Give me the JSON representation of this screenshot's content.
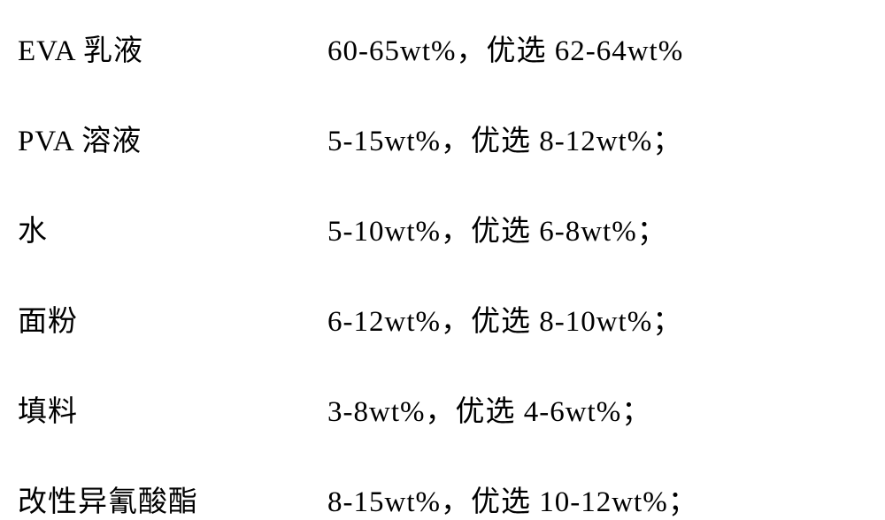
{
  "rows": [
    {
      "label": "EVA 乳液",
      "value": "60-65wt%，优选 62-64wt%"
    },
    {
      "label": "PVA 溶液",
      "value": "5-15wt%，优选 8-12wt%；"
    },
    {
      "label": "水",
      "value": "5-10wt%，优选 6-8wt%；"
    },
    {
      "label": "面粉",
      "value": "6-12wt%，优选 8-10wt%；"
    },
    {
      "label": "填料",
      "value": "3-8wt%，优选 4-6wt%；"
    },
    {
      "label": "改性异氰酸酯",
      "value": "8-15wt%，优选 10-12wt%；"
    }
  ],
  "style": {
    "font_size": 33,
    "text_color": "#000000",
    "background_color": "#ffffff",
    "label_width": 350,
    "row_spacing": 54
  }
}
